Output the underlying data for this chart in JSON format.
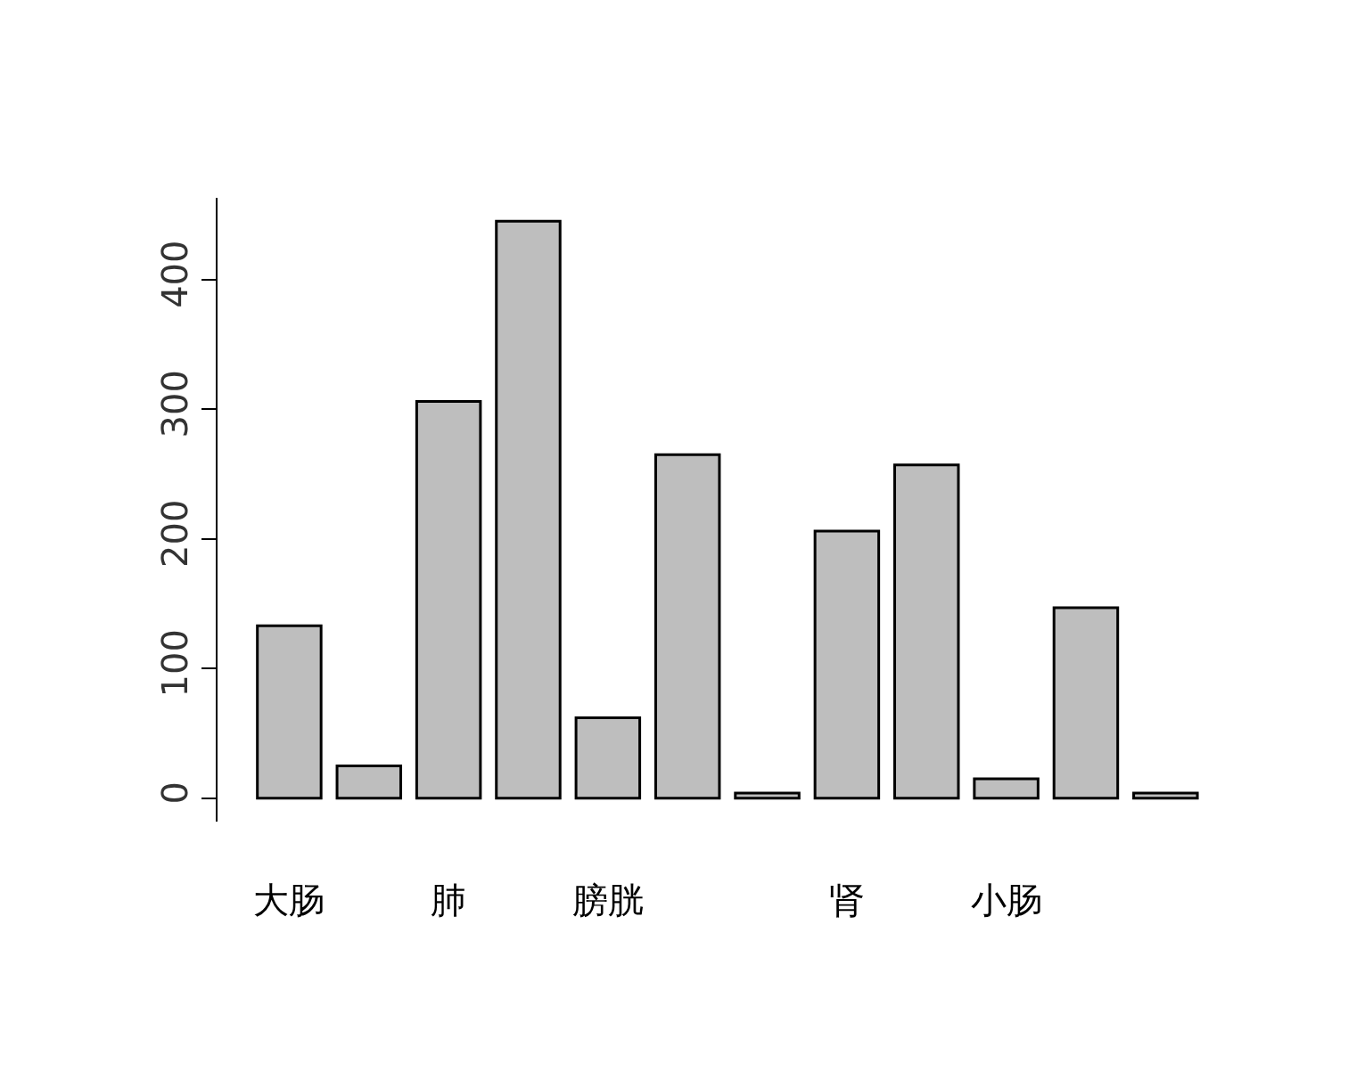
{
  "chart_data": {
    "type": "bar",
    "categories": [
      "大肠",
      null,
      "肺",
      null,
      "膀胱",
      null,
      null,
      "肾",
      null,
      "小肠",
      null,
      null
    ],
    "values": [
      133,
      25,
      306,
      445,
      62,
      265,
      4,
      206,
      257,
      15,
      147,
      4
    ],
    "color": "#bebebe",
    "ylim": [
      -18,
      463
    ],
    "yticks": [
      0,
      100,
      200,
      300,
      400
    ],
    "legend": false
  }
}
